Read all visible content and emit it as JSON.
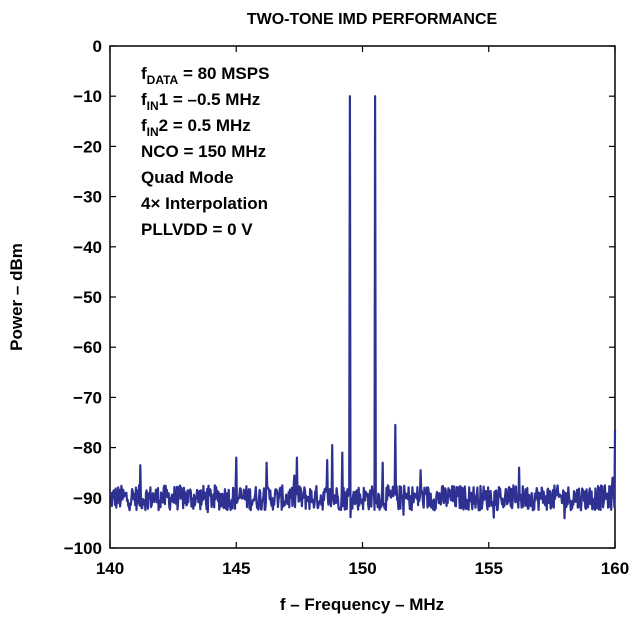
{
  "chart_data": {
    "type": "line",
    "title": "TWO-TONE IMD PERFORMANCE",
    "xlabel": "f – Frequency – MHz",
    "ylabel": "Power – dBm",
    "xlim": [
      140,
      160
    ],
    "ylim": [
      -100,
      0
    ],
    "x_ticks": [
      "140",
      "145",
      "150",
      "155",
      "160"
    ],
    "y_ticks": [
      "0",
      "−10",
      "−20",
      "−30",
      "−40",
      "−50",
      "−60",
      "−70",
      "−80",
      "−90",
      "−100"
    ],
    "grid": false,
    "annotations": [
      {
        "main": "f",
        "sub": "DATA",
        "rest": " = 80 MSPS"
      },
      {
        "main": "f",
        "sub": "IN",
        "rest": "1 = –0.5 MHz"
      },
      {
        "main": "f",
        "sub": "IN",
        "rest": "2 = 0.5 MHz"
      },
      {
        "main": "NCO = 150 MHz",
        "sub": "",
        "rest": ""
      },
      {
        "main": "Quad Mode",
        "sub": "",
        "rest": ""
      },
      {
        "main": "4× Interpolation",
        "sub": "",
        "rest": ""
      },
      {
        "main": "PLLVDD = 0 V",
        "sub": "",
        "rest": ""
      }
    ],
    "noise_floor_dbm": -90,
    "series": [
      {
        "color": "#2e3192",
        "peaks": [
          {
            "x": 141.2,
            "y": -83.5
          },
          {
            "x": 145.0,
            "y": -82
          },
          {
            "x": 146.2,
            "y": -83
          },
          {
            "x": 147.4,
            "y": -82
          },
          {
            "x": 148.6,
            "y": -82.5
          },
          {
            "x": 148.8,
            "y": -79.5
          },
          {
            "x": 149.2,
            "y": -81
          },
          {
            "x": 149.5,
            "y": -10
          },
          {
            "x": 150.5,
            "y": -10
          },
          {
            "x": 150.8,
            "y": -83
          },
          {
            "x": 151.3,
            "y": -75.5
          },
          {
            "x": 152.3,
            "y": -84.5
          },
          {
            "x": 156.2,
            "y": -84
          },
          {
            "x": 159.9,
            "y": -86
          },
          {
            "x": 160.0,
            "y": -76.5
          }
        ]
      }
    ]
  }
}
